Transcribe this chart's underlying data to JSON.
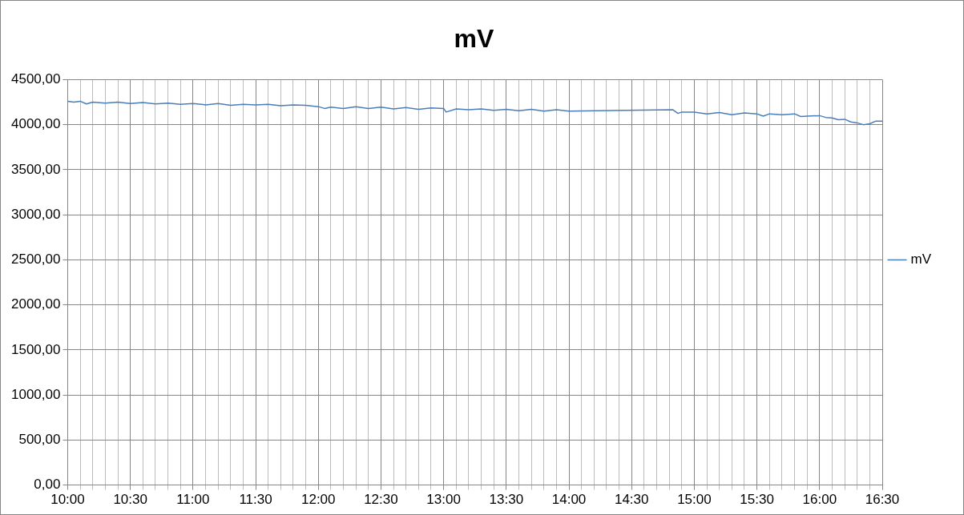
{
  "chart_data": {
    "type": "line",
    "title": "mV",
    "legend": "right",
    "grid": true,
    "marker": "none",
    "line_style": "solid",
    "xlim": [
      10,
      16.5
    ],
    "xticks": [
      {
        "value": 10,
        "label": "10:00"
      },
      {
        "value": 10.1,
        "label": null
      },
      {
        "value": 10.2,
        "label": null
      },
      {
        "value": 10.3,
        "label": null
      },
      {
        "value": 10.4,
        "label": null
      },
      {
        "value": 10.5,
        "label": "10:30"
      },
      {
        "value": 10.6,
        "label": null
      },
      {
        "value": 10.7,
        "label": null
      },
      {
        "value": 10.8,
        "label": null
      },
      {
        "value": 10.9,
        "label": null
      },
      {
        "value": 11,
        "label": "11:00"
      },
      {
        "value": 11.1,
        "label": null
      },
      {
        "value": 11.2,
        "label": null
      },
      {
        "value": 11.3,
        "label": null
      },
      {
        "value": 11.4,
        "label": null
      },
      {
        "value": 11.5,
        "label": "11:30"
      },
      {
        "value": 11.6,
        "label": null
      },
      {
        "value": 11.7,
        "label": null
      },
      {
        "value": 11.8,
        "label": null
      },
      {
        "value": 11.9,
        "label": null
      },
      {
        "value": 12,
        "label": "12:00"
      },
      {
        "value": 12.1,
        "label": null
      },
      {
        "value": 12.2,
        "label": null
      },
      {
        "value": 12.3,
        "label": null
      },
      {
        "value": 12.4,
        "label": null
      },
      {
        "value": 12.5,
        "label": "12:30"
      },
      {
        "value": 12.6,
        "label": null
      },
      {
        "value": 12.7,
        "label": null
      },
      {
        "value": 12.8,
        "label": null
      },
      {
        "value": 12.9,
        "label": null
      },
      {
        "value": 13,
        "label": "13:00"
      },
      {
        "value": 13.1,
        "label": null
      },
      {
        "value": 13.2,
        "label": null
      },
      {
        "value": 13.3,
        "label": null
      },
      {
        "value": 13.4,
        "label": null
      },
      {
        "value": 13.5,
        "label": "13:30"
      },
      {
        "value": 13.6,
        "label": null
      },
      {
        "value": 13.7,
        "label": null
      },
      {
        "value": 13.8,
        "label": null
      },
      {
        "value": 13.9,
        "label": null
      },
      {
        "value": 14,
        "label": "14:00"
      },
      {
        "value": 14.1,
        "label": null
      },
      {
        "value": 14.2,
        "label": null
      },
      {
        "value": 14.3,
        "label": null
      },
      {
        "value": 14.4,
        "label": null
      },
      {
        "value": 14.5,
        "label": "14:30"
      },
      {
        "value": 14.6,
        "label": null
      },
      {
        "value": 14.7,
        "label": null
      },
      {
        "value": 14.8,
        "label": null
      },
      {
        "value": 14.9,
        "label": null
      },
      {
        "value": 15,
        "label": "15:00"
      },
      {
        "value": 15.1,
        "label": null
      },
      {
        "value": 15.2,
        "label": null
      },
      {
        "value": 15.3,
        "label": null
      },
      {
        "value": 15.4,
        "label": null
      },
      {
        "value": 15.5,
        "label": "15:30"
      },
      {
        "value": 15.6,
        "label": null
      },
      {
        "value": 15.7,
        "label": null
      },
      {
        "value": 15.8,
        "label": null
      },
      {
        "value": 15.9,
        "label": null
      },
      {
        "value": 16,
        "label": "16:00"
      },
      {
        "value": 16.1,
        "label": null
      },
      {
        "value": 16.2,
        "label": null
      },
      {
        "value": 16.3,
        "label": null
      },
      {
        "value": 16.4,
        "label": null
      },
      {
        "value": 16.5,
        "label": "16:30"
      }
    ],
    "ylim": [
      0,
      4500
    ],
    "yticks": [
      {
        "value": 0,
        "label": "0,00"
      },
      {
        "value": 500,
        "label": "500,00"
      },
      {
        "value": 1000,
        "label": "1000,00"
      },
      {
        "value": 1500,
        "label": "1500,00"
      },
      {
        "value": 2000,
        "label": "2000,00"
      },
      {
        "value": 2500,
        "label": "2500,00"
      },
      {
        "value": 3000,
        "label": "3000,00"
      },
      {
        "value": 3500,
        "label": "3500,00"
      },
      {
        "value": 4000,
        "label": "4000,00"
      },
      {
        "value": 4500,
        "label": "4500,00"
      }
    ],
    "series": [
      {
        "name": "mV",
        "color": "#4a7ebb",
        "x": [
          10,
          10.05,
          10.1,
          10.15,
          10.2,
          10.3,
          10.4,
          10.5,
          10.6,
          10.7,
          10.8,
          10.9,
          11,
          11.1,
          11.2,
          11.3,
          11.4,
          11.5,
          11.6,
          11.7,
          11.8,
          11.9,
          12,
          12.05,
          12.1,
          12.2,
          12.3,
          12.4,
          12.5,
          12.6,
          12.7,
          12.8,
          12.9,
          13,
          13.02,
          13.1,
          13.2,
          13.3,
          13.4,
          13.5,
          13.6,
          13.7,
          13.8,
          13.9,
          14,
          14.83,
          14.87,
          14.9,
          15,
          15.1,
          15.2,
          15.3,
          15.4,
          15.5,
          15.55,
          15.6,
          15.7,
          15.8,
          15.85,
          15.9,
          16,
          16.05,
          16.1,
          16.15,
          16.2,
          16.25,
          16.3,
          16.35,
          16.4,
          16.45,
          16.5
        ],
        "values": [
          4260,
          4250,
          4260,
          4230,
          4250,
          4240,
          4250,
          4235,
          4245,
          4230,
          4240,
          4225,
          4235,
          4220,
          4235,
          4215,
          4225,
          4220,
          4225,
          4210,
          4220,
          4215,
          4200,
          4180,
          4195,
          4180,
          4200,
          4180,
          4195,
          4175,
          4190,
          4170,
          4185,
          4180,
          4140,
          4175,
          4165,
          4175,
          4160,
          4170,
          4155,
          4170,
          4150,
          4165,
          4150,
          4165,
          4125,
          4140,
          4140,
          4120,
          4135,
          4110,
          4130,
          4120,
          4095,
          4120,
          4110,
          4120,
          4090,
          4095,
          4100,
          4080,
          4075,
          4055,
          4060,
          4030,
          4020,
          4000,
          4010,
          4040,
          4040
        ]
      }
    ]
  }
}
